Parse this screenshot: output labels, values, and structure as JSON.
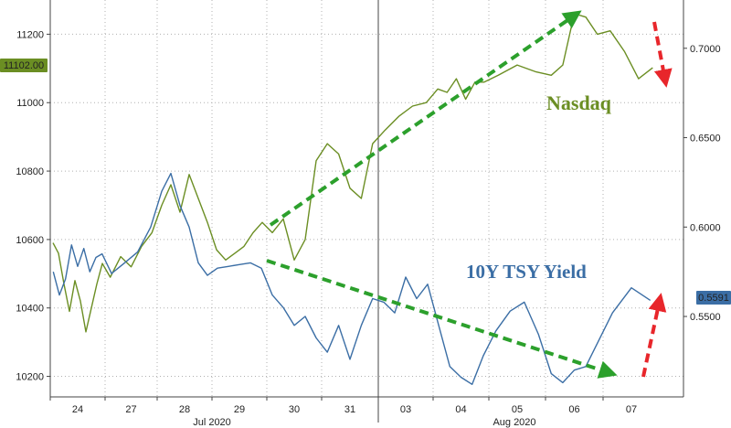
{
  "chart_data": {
    "type": "line",
    "title": "",
    "grid": true,
    "x_axis": {
      "day_labels": [
        "24",
        "27",
        "28",
        "29",
        "30",
        "31",
        "03",
        "04",
        "05",
        "06",
        "07"
      ],
      "month_labels": [
        "Jul 2020",
        "Aug 2020"
      ]
    },
    "left_axis": {
      "ticks": [
        "11200",
        "11000",
        "10800",
        "10600",
        "10400",
        "10200"
      ],
      "ylim": [
        10140,
        11300
      ],
      "current_value": "11102.00",
      "current_value_color": "#6b8e23"
    },
    "right_axis": {
      "ticks": [
        "0.7000",
        "0.6500",
        "0.6000",
        "0.5500"
      ],
      "ylim": [
        0.505,
        0.727
      ],
      "current_value": "0.5591",
      "current_value_color": "#3b6ea5"
    },
    "series": [
      {
        "name": "Nasdaq",
        "axis": "left",
        "color": "#6b8e23",
        "points": [
          [
            "24",
            10590
          ],
          [
            "24",
            10560
          ],
          [
            "24",
            10470
          ],
          [
            "24",
            10390
          ],
          [
            "24",
            10480
          ],
          [
            "24",
            10420
          ],
          [
            "24",
            10330
          ],
          [
            "24",
            10400
          ],
          [
            "24",
            10470
          ],
          [
            "24",
            10530
          ],
          [
            "27",
            10490
          ],
          [
            "27",
            10550
          ],
          [
            "27",
            10520
          ],
          [
            "27",
            10580
          ],
          [
            "27",
            10620
          ],
          [
            "28",
            10700
          ],
          [
            "28",
            10760
          ],
          [
            "28",
            10680
          ],
          [
            "28",
            10790
          ],
          [
            "28",
            10720
          ],
          [
            "28",
            10650
          ],
          [
            "29",
            10570
          ],
          [
            "29",
            10540
          ],
          [
            "29",
            10560
          ],
          [
            "29",
            10580
          ],
          [
            "29",
            10620
          ],
          [
            "29",
            10650
          ],
          [
            "30",
            10620
          ],
          [
            "30",
            10660
          ],
          [
            "30",
            10540
          ],
          [
            "30",
            10600
          ],
          [
            "30",
            10830
          ],
          [
            "31",
            10880
          ],
          [
            "31",
            10850
          ],
          [
            "31",
            10750
          ],
          [
            "31",
            10720
          ],
          [
            "31",
            10880
          ],
          [
            "03",
            10920
          ],
          [
            "03",
            10960
          ],
          [
            "03",
            10990
          ],
          [
            "03",
            11000
          ],
          [
            "04",
            11040
          ],
          [
            "04",
            11030
          ],
          [
            "04",
            11070
          ],
          [
            "04",
            11010
          ],
          [
            "04",
            11060
          ],
          [
            "04",
            11060
          ],
          [
            "05",
            11080
          ],
          [
            "05",
            11110
          ],
          [
            "05",
            11090
          ],
          [
            "06",
            11080
          ],
          [
            "06",
            11110
          ],
          [
            "06",
            11260
          ],
          [
            "06",
            11250
          ],
          [
            "06",
            11200
          ],
          [
            "07",
            11210
          ],
          [
            "07",
            11150
          ],
          [
            "07",
            11070
          ],
          [
            "07",
            11102
          ]
        ]
      },
      {
        "name": "10Y TSY Yield",
        "axis": "right",
        "color": "#3b6ea5",
        "points": [
          [
            "24",
            0.575
          ],
          [
            "24",
            0.562
          ],
          [
            "24",
            0.571
          ],
          [
            "24",
            0.59
          ],
          [
            "24",
            0.578
          ],
          [
            "24",
            0.588
          ],
          [
            "24",
            0.575
          ],
          [
            "24",
            0.583
          ],
          [
            "24",
            0.585
          ],
          [
            "27",
            0.574
          ],
          [
            "27",
            0.58
          ],
          [
            "27",
            0.586
          ],
          [
            "27",
            0.6
          ],
          [
            "28",
            0.62
          ],
          [
            "28",
            0.63
          ],
          [
            "28",
            0.612
          ],
          [
            "28",
            0.6
          ],
          [
            "28",
            0.58
          ],
          [
            "28",
            0.573
          ],
          [
            "29",
            0.577
          ],
          [
            "29",
            0.578
          ],
          [
            "29",
            0.579
          ],
          [
            "29",
            0.58
          ],
          [
            "29",
            0.577
          ],
          [
            "30",
            0.562
          ],
          [
            "30",
            0.555
          ],
          [
            "30",
            0.545
          ],
          [
            "30",
            0.55
          ],
          [
            "30",
            0.538
          ],
          [
            "31",
            0.53
          ],
          [
            "31",
            0.545
          ],
          [
            "31",
            0.526
          ],
          [
            "31",
            0.545
          ],
          [
            "31",
            0.56
          ],
          [
            "03",
            0.558
          ],
          [
            "03",
            0.552
          ],
          [
            "03",
            0.572
          ],
          [
            "03",
            0.56
          ],
          [
            "03",
            0.568
          ],
          [
            "04",
            0.545
          ],
          [
            "04",
            0.522
          ],
          [
            "04",
            0.516
          ],
          [
            "04",
            0.512
          ],
          [
            "04",
            0.528
          ],
          [
            "05",
            0.542
          ],
          [
            "05",
            0.553
          ],
          [
            "05",
            0.558
          ],
          [
            "05",
            0.54
          ],
          [
            "06",
            0.518
          ],
          [
            "06",
            0.513
          ],
          [
            "06",
            0.52
          ],
          [
            "06",
            0.522
          ],
          [
            "06",
            0.535
          ],
          [
            "07",
            0.552
          ],
          [
            "07",
            0.566
          ],
          [
            "07",
            0.559
          ]
        ]
      }
    ],
    "annotations": [
      {
        "label": "Nasdaq",
        "color": "#6b8e23"
      },
      {
        "label": "10Y TSY Yield",
        "color": "#3b6ea5"
      }
    ],
    "arrow_colors": {
      "trend": "#2ca02c",
      "move": "#e8262b"
    }
  }
}
